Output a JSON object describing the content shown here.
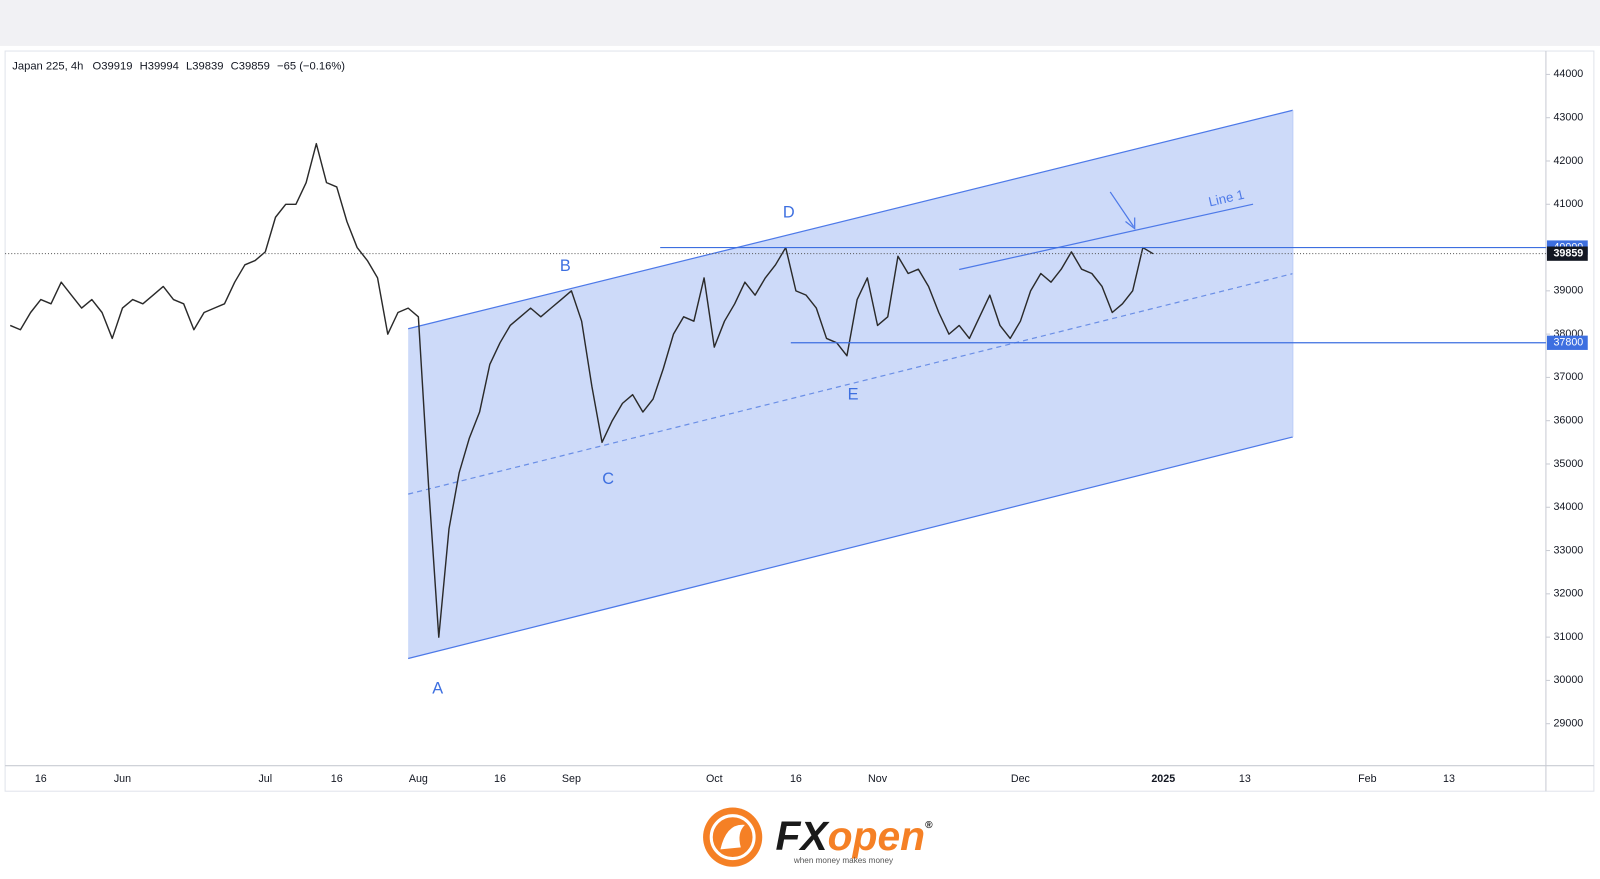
{
  "chart_data": {
    "type": "line",
    "symbol": "Japan 225, 4h",
    "ohlc": [
      "O39919",
      "H39994",
      "L39839",
      "C39859",
      "−65 (−0.16%)"
    ],
    "color": "#2a2a2a",
    "categories": [
      null,
      null,
      null,
      "16",
      null,
      null,
      null,
      null,
      null,
      null,
      null,
      "Jun",
      null,
      null,
      null,
      null,
      null,
      null,
      null,
      null,
      null,
      null,
      null,
      null,
      null,
      "Jul",
      null,
      null,
      null,
      null,
      null,
      null,
      "16",
      null,
      null,
      null,
      null,
      null,
      null,
      null,
      "Aug",
      null,
      null,
      null,
      null,
      null,
      null,
      null,
      "16",
      null,
      null,
      null,
      null,
      null,
      null,
      "Sep",
      null,
      null,
      null,
      null,
      null,
      null,
      null,
      null,
      null,
      null,
      null,
      null,
      null,
      "Oct",
      null,
      null,
      null,
      null,
      null,
      null,
      null,
      "16",
      null,
      null,
      null,
      null,
      null,
      null,
      null,
      "Nov",
      null,
      null,
      null,
      null,
      null,
      null,
      null,
      null,
      null,
      null,
      null,
      null,
      null,
      "Dec",
      null,
      null,
      null,
      null,
      null,
      null,
      null,
      null,
      null,
      null,
      null,
      null,
      null,
      "2025",
      null,
      null,
      null,
      null,
      null,
      null,
      null,
      "13",
      null,
      null,
      null,
      null,
      null,
      null,
      null,
      null,
      null,
      null,
      null,
      "Feb",
      null,
      null,
      null,
      null,
      null,
      null,
      null,
      "13",
      null,
      null,
      null,
      null,
      null,
      null,
      null,
      null,
      null
    ],
    "values": [
      38200,
      38100,
      38500,
      38800,
      38700,
      39200,
      38900,
      38600,
      38800,
      38500,
      37900,
      38600,
      38800,
      38700,
      38900,
      39100,
      38800,
      38700,
      38100,
      38500,
      38600,
      38700,
      39200,
      39600,
      39700,
      39900,
      40700,
      41000,
      41000,
      41500,
      42400,
      41500,
      41400,
      40600,
      40000,
      39700,
      39300,
      38000,
      38500,
      38600,
      38400,
      34500,
      31000,
      33500,
      34800,
      35600,
      36200,
      37300,
      37800,
      38200,
      38400,
      38600,
      38400,
      38600,
      38800,
      39000,
      38300,
      36800,
      35500,
      36000,
      36400,
      36600,
      36200,
      36500,
      37200,
      38000,
      38400,
      38300,
      39300,
      37700,
      38300,
      38700,
      39200,
      38900,
      39300,
      39600,
      40000,
      39000,
      38900,
      38600,
      37900,
      37800,
      37500,
      38800,
      39300,
      38200,
      38400,
      39800,
      39400,
      39500,
      39100,
      38500,
      38000,
      38200,
      37900,
      38400,
      38900,
      38200,
      37900,
      38300,
      39000,
      39400,
      39200,
      39500,
      39900,
      39500,
      39400,
      39100,
      38500,
      38700,
      39000,
      40000,
      39859,
      null,
      null,
      null,
      null,
      null,
      null,
      null,
      null,
      null,
      null,
      null,
      null,
      null,
      null,
      null,
      null,
      null,
      null,
      null,
      null,
      null,
      null,
      null,
      null,
      null,
      null,
      null,
      null,
      null,
      null,
      null,
      null,
      null,
      null,
      null,
      null,
      null,
      null
    ],
    "ylim": [
      28030,
      44540
    ],
    "yticks": [
      29000,
      30000,
      31000,
      32000,
      33000,
      34000,
      35000,
      36000,
      37000,
      38000,
      39000,
      40000,
      41000,
      42000,
      43000,
      44000
    ],
    "grid": false,
    "levels": [
      {
        "value": 40000,
        "color": "#3d6fe0"
      },
      {
        "value": 37800,
        "color": "#3d6fe0"
      }
    ],
    "wave_labels": [
      "A",
      "B",
      "C",
      "D",
      "E"
    ],
    "annotation": "Line 1",
    "footer": {
      "brand_a": "FX",
      "brand_b": "open",
      "mark": "®",
      "tagline": "when money makes money"
    }
  }
}
